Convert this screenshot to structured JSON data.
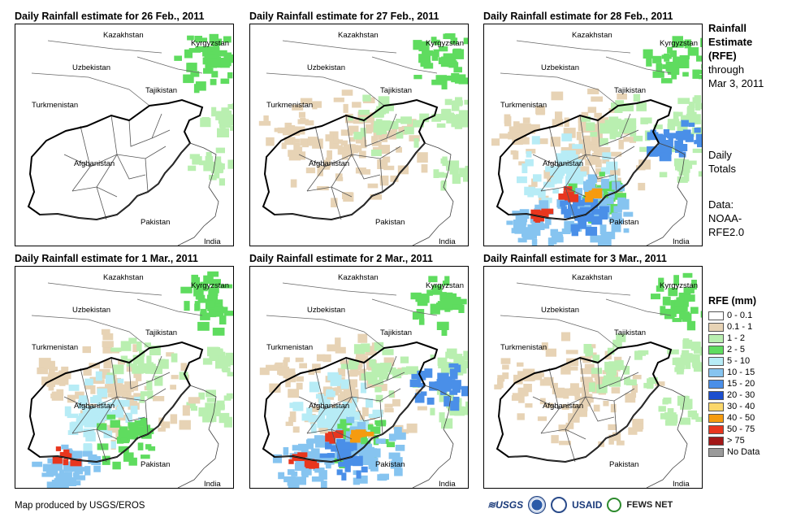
{
  "panels": [
    {
      "title": "Daily Rainfall estimate for 26 Feb., 2011",
      "rain": 0
    },
    {
      "title": "Daily Rainfall estimate for 27 Feb., 2011",
      "rain": 1
    },
    {
      "title": "Daily Rainfall estimate for 28 Feb., 2011",
      "rain": 3
    },
    {
      "title": "Daily Rainfall estimate for 1 Mar., 2011",
      "rain": 2
    },
    {
      "title": "Daily Rainfall estimate for 2 Mar., 2011",
      "rain": 3
    },
    {
      "title": "Daily Rainfall estimate for 3 Mar., 2011",
      "rain": 1
    }
  ],
  "map_labels": {
    "kazakhstan": "Kazakhstan",
    "kyrgyzstan": "Kyrgyzstan",
    "uzbekistan": "Uzbekistan",
    "tajikistan": "Tajikistan",
    "turkmenistan": "Turkmenistan",
    "afghanistan": "Afghanistan",
    "pakistan": "Pakistan",
    "india": "India"
  },
  "side": {
    "title_line1": "Rainfall",
    "title_line2": "Estimate",
    "title_line3": "(RFE)",
    "through": "through",
    "date": "Mar 3, 2011",
    "totals_line1": "Daily",
    "totals_line2": "Totals",
    "data_line1": "Data:",
    "data_line2": "NOAA-",
    "data_line3": "RFE2.0"
  },
  "legend": {
    "title": "RFE (mm)",
    "items": [
      {
        "label": "0 - 0.1",
        "color": "#ffffff"
      },
      {
        "label": "0.1 - 1",
        "color": "#e7d3b5"
      },
      {
        "label": "1 - 2",
        "color": "#b9efb0"
      },
      {
        "label": "2 - 5",
        "color": "#5fdc5f"
      },
      {
        "label": "5 - 10",
        "color": "#b7ecf6"
      },
      {
        "label": "10 - 15",
        "color": "#86c4f0"
      },
      {
        "label": "15 - 20",
        "color": "#4a8fe8"
      },
      {
        "label": "20 - 30",
        "color": "#1d4fcf"
      },
      {
        "label": "30 - 40",
        "color": "#fbd76a"
      },
      {
        "label": "40 - 50",
        "color": "#f59b0f"
      },
      {
        "label": "50 - 75",
        "color": "#e8361e"
      },
      {
        "label": "> 75",
        "color": "#a31818"
      },
      {
        "label": "No Data",
        "color": "#9a9a9a"
      }
    ]
  },
  "credit": "Map produced by USGS/EROS",
  "logos": {
    "usgs": "USGS",
    "usaid": "USAID",
    "fewsnet": "FEWS NET"
  }
}
